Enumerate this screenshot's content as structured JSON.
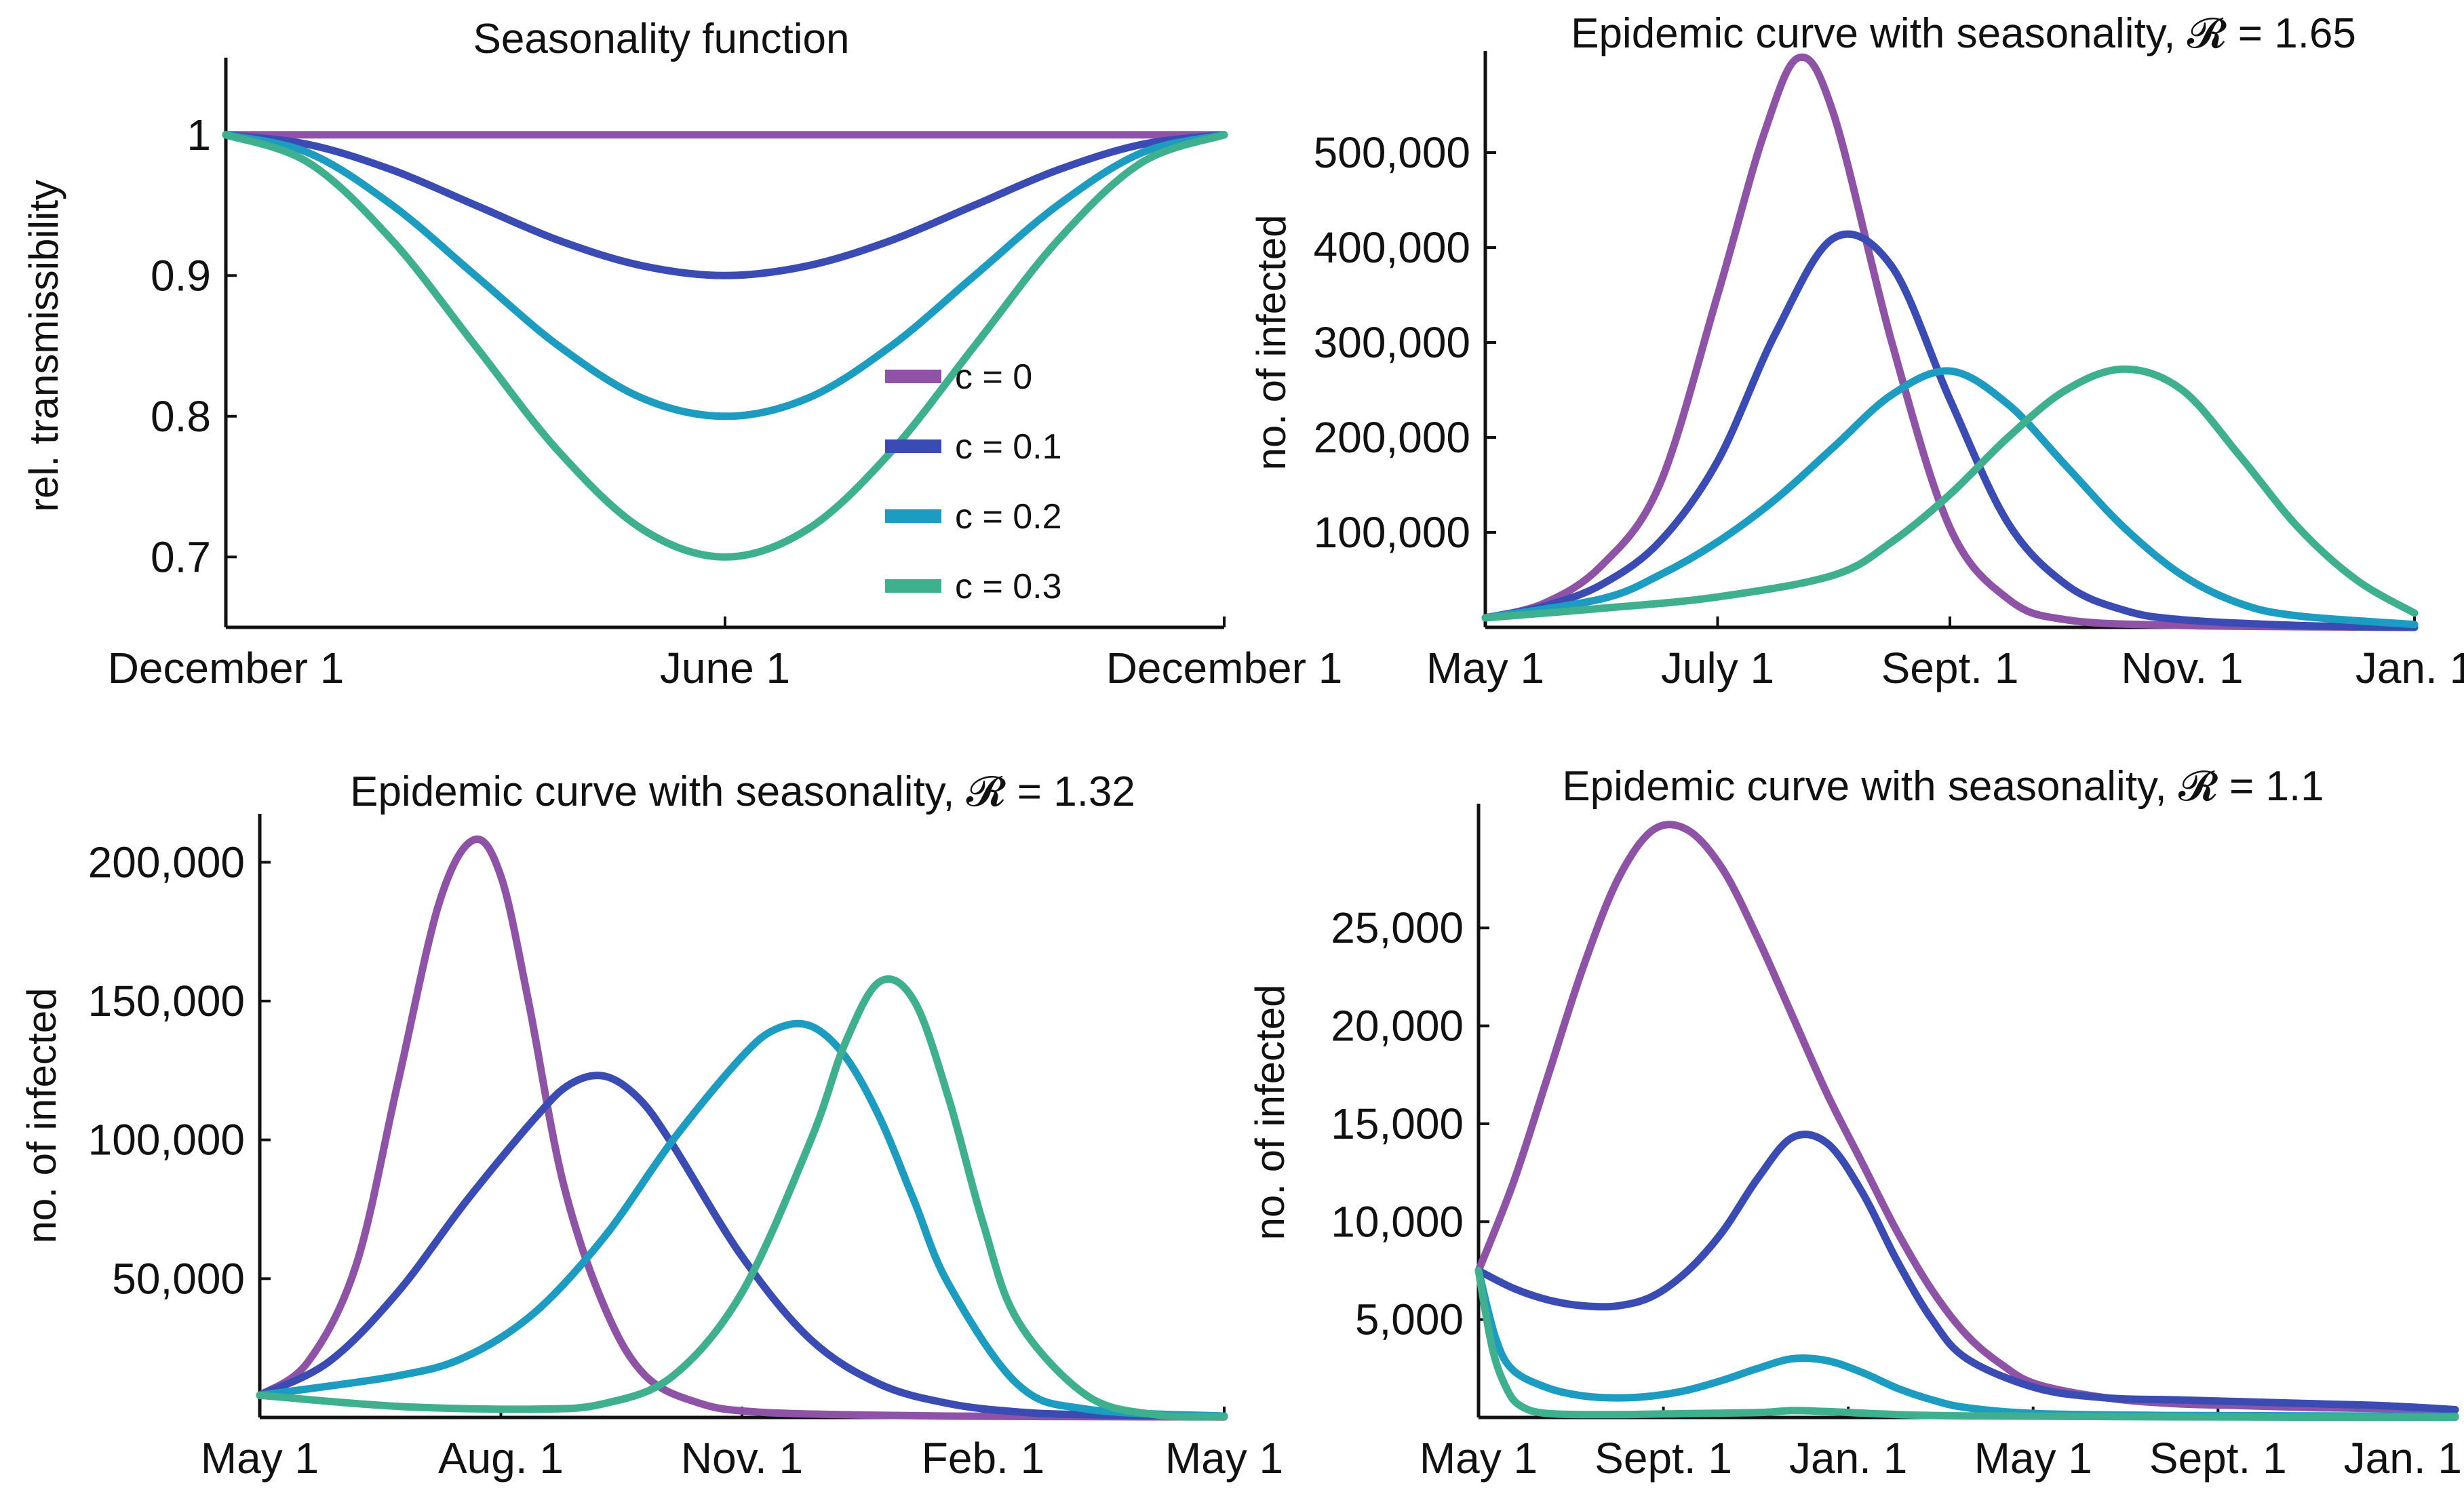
{
  "colors": {
    "c0": "#8E52A6",
    "c01": "#3A4BB3",
    "c02": "#1B9CC0",
    "c03": "#3EB08E"
  },
  "chart_data": [
    {
      "type": "line",
      "title": "Seasonality function",
      "xlabel": "",
      "ylabel": "rel. transmissibility",
      "xticks": [
        "December 1",
        "June 1",
        "December 1"
      ],
      "yticks": [
        "1",
        "0.9",
        "0.8",
        "0.7"
      ],
      "ylim": [
        0.65,
        1.05
      ],
      "legend_position": "right",
      "series": [
        {
          "name": "c = 0",
          "x": [
            0,
            1,
            2,
            3,
            4,
            5,
            6,
            7,
            8,
            9,
            10,
            11,
            12
          ],
          "values": [
            1,
            1,
            1,
            1,
            1,
            1,
            1,
            1,
            1,
            1,
            1,
            1,
            1
          ]
        },
        {
          "name": "c = 0.1",
          "x": [
            0,
            1,
            2,
            3,
            4,
            5,
            6,
            7,
            8,
            9,
            10,
            11,
            12
          ],
          "values": [
            1,
            0.993,
            0.975,
            0.95,
            0.925,
            0.907,
            0.9,
            0.907,
            0.925,
            0.95,
            0.975,
            0.993,
            1
          ]
        },
        {
          "name": "c = 0.2",
          "x": [
            0,
            1,
            2,
            3,
            4,
            5,
            6,
            7,
            8,
            9,
            10,
            11,
            12
          ],
          "values": [
            1,
            0.987,
            0.95,
            0.9,
            0.85,
            0.813,
            0.8,
            0.813,
            0.85,
            0.9,
            0.95,
            0.987,
            1
          ]
        },
        {
          "name": "c = 0.3",
          "x": [
            0,
            1,
            2,
            3,
            4,
            5,
            6,
            7,
            8,
            9,
            10,
            11,
            12
          ],
          "values": [
            1,
            0.98,
            0.925,
            0.85,
            0.775,
            0.72,
            0.7,
            0.72,
            0.775,
            0.85,
            0.925,
            0.98,
            1
          ]
        }
      ]
    },
    {
      "type": "line",
      "title": "Epidemic curve with seasonality, 𝓡 = 1.65",
      "xlabel": "",
      "ylabel": "no. of infected",
      "xticks": [
        "May 1",
        "July 1",
        "Sept. 1",
        "Nov. 1",
        "Jan. 1"
      ],
      "yticks": [
        "100,000",
        "200,000",
        "300,000",
        "400,000",
        "500,000"
      ],
      "ylim": [
        0,
        600000
      ],
      "series": [
        {
          "name": "c = 0",
          "x": [
            0,
            0.5,
            1,
            1.5,
            2,
            2.4,
            2.7,
            3,
            3.5,
            4,
            4.5,
            5,
            6,
            8
          ],
          "values": [
            10000,
            25000,
            65000,
            150000,
            350000,
            520000,
            600000,
            540000,
            300000,
            105000,
            30000,
            8000,
            2000,
            0
          ]
        },
        {
          "name": "c = 0.1",
          "x": [
            0,
            0.5,
            1,
            1.5,
            2,
            2.5,
            3,
            3.5,
            4,
            4.5,
            5,
            5.5,
            6,
            7,
            8
          ],
          "values": [
            10000,
            22000,
            45000,
            90000,
            175000,
            310000,
            410000,
            380000,
            240000,
            110000,
            45000,
            18000,
            8000,
            2000,
            0
          ]
        },
        {
          "name": "c = 0.2",
          "x": [
            0,
            1,
            1.5,
            2,
            2.5,
            3,
            3.5,
            4,
            4.5,
            5,
            5.5,
            6,
            6.5,
            7,
            8
          ],
          "values": [
            10000,
            30000,
            55000,
            90000,
            135000,
            190000,
            245000,
            270000,
            235000,
            170000,
            105000,
            55000,
            25000,
            12000,
            3000
          ]
        },
        {
          "name": "c = 0.3",
          "x": [
            0,
            1,
            2,
            3,
            3.5,
            4,
            4.5,
            5,
            5.5,
            6,
            6.5,
            7,
            7.5,
            8
          ],
          "values": [
            10000,
            20000,
            32000,
            55000,
            90000,
            140000,
            200000,
            250000,
            272000,
            250000,
            180000,
            105000,
            50000,
            15000
          ]
        }
      ]
    },
    {
      "type": "line",
      "title": "Epidemic curve with seasonality, 𝓡 = 1.32",
      "xlabel": "",
      "ylabel": "no. of infected",
      "xticks": [
        "May 1",
        "Aug. 1",
        "Nov. 1",
        "Feb. 1",
        "May 1"
      ],
      "yticks": [
        "50,000",
        "100,000",
        "150,000",
        "200,000"
      ],
      "ylim": [
        0,
        215000
      ],
      "series": [
        {
          "name": "c = 0",
          "x": [
            0,
            0.7,
            1.4,
            2,
            2.6,
            3.1,
            3.5,
            3.9,
            4.4,
            5,
            5.6,
            6.4,
            7.2,
            8.5,
            10,
            12,
            14
          ],
          "values": [
            8000,
            20000,
            55000,
            120000,
            185000,
            208000,
            195000,
            150000,
            85000,
            40000,
            15000,
            5000,
            2000,
            1000,
            500,
            300,
            200
          ]
        },
        {
          "name": "c = 0.1",
          "x": [
            0,
            1,
            2,
            3,
            4,
            4.5,
            5,
            5.5,
            6,
            7,
            8,
            9,
            10,
            11,
            12,
            14
          ],
          "values": [
            8000,
            20000,
            45000,
            78000,
            108000,
            120000,
            123000,
            115000,
            98000,
            58000,
            28000,
            12000,
            5000,
            2000,
            1000,
            500
          ]
        },
        {
          "name": "c = 0.2",
          "x": [
            0,
            2,
            3,
            4,
            5,
            6,
            7,
            7.5,
            8,
            8.5,
            9,
            9.5,
            10,
            11,
            12,
            14
          ],
          "values": [
            8000,
            15000,
            22000,
            38000,
            65000,
            100000,
            130000,
            140000,
            141000,
            130000,
            108000,
            78000,
            48000,
            12000,
            3000,
            500
          ]
        },
        {
          "name": "c = 0.3",
          "x": [
            0,
            2,
            4,
            5,
            6,
            7,
            8,
            8.5,
            9,
            9.5,
            10,
            10.5,
            11,
            12,
            13,
            14
          ],
          "values": [
            8000,
            4000,
            3000,
            5000,
            15000,
            45000,
            100000,
            135000,
            157000,
            150000,
            115000,
            70000,
            35000,
            8000,
            1000,
            300
          ]
        }
      ]
    },
    {
      "type": "line",
      "title": "Epidemic curve with seasonality, 𝓡 = 1.1",
      "xlabel": "",
      "ylabel": "no. of infected",
      "xticks": [
        "May 1",
        "Sept. 1",
        "Jan. 1",
        "May 1",
        "Sept. 1",
        "Jan. 1"
      ],
      "yticks": [
        "5,000",
        "10,000",
        "15,000",
        "20,000",
        "25,000"
      ],
      "ylim": [
        0,
        31000
      ],
      "series": [
        {
          "name": "c = 0",
          "x": [
            0,
            1,
            2,
            3,
            4,
            5,
            6,
            7,
            8,
            9,
            10,
            11,
            12,
            13,
            14,
            15,
            16,
            18,
            20,
            22,
            24,
            26,
            28
          ],
          "values": [
            7500,
            12000,
            17500,
            23000,
            27500,
            30000,
            30000,
            28000,
            24500,
            20500,
            16500,
            13000,
            9500,
            6500,
            4200,
            2700,
            1700,
            1000,
            700,
            600,
            500,
            450,
            400
          ]
        },
        {
          "name": "c = 0.1",
          "x": [
            0,
            1,
            2,
            3,
            4,
            5,
            6,
            7,
            8,
            9,
            10,
            11,
            12,
            13,
            14,
            16,
            18,
            20,
            22,
            24,
            26,
            28
          ],
          "values": [
            7500,
            6600,
            6000,
            5700,
            5700,
            6200,
            7500,
            9500,
            12200,
            14300,
            14000,
            11500,
            8000,
            5000,
            3000,
            1500,
            1000,
            900,
            800,
            700,
            600,
            400
          ]
        },
        {
          "name": "c = 0.2",
          "x": [
            0,
            0.5,
            1,
            2,
            3,
            4,
            5,
            6,
            7,
            8,
            9,
            10,
            11,
            12,
            13,
            14,
            16,
            20,
            24,
            28
          ],
          "values": [
            7500,
            4000,
            2400,
            1500,
            1100,
            1000,
            1100,
            1400,
            1900,
            2500,
            3000,
            2900,
            2300,
            1500,
            900,
            500,
            200,
            100,
            80,
            60
          ]
        },
        {
          "name": "c = 0.3",
          "x": [
            0,
            0.4,
            0.8,
            1.2,
            2,
            4,
            6,
            8,
            9,
            10,
            12,
            14,
            20,
            28
          ],
          "values": [
            7500,
            3500,
            1500,
            600,
            200,
            150,
            200,
            250,
            350,
            300,
            150,
            80,
            30,
            10
          ]
        }
      ]
    }
  ]
}
